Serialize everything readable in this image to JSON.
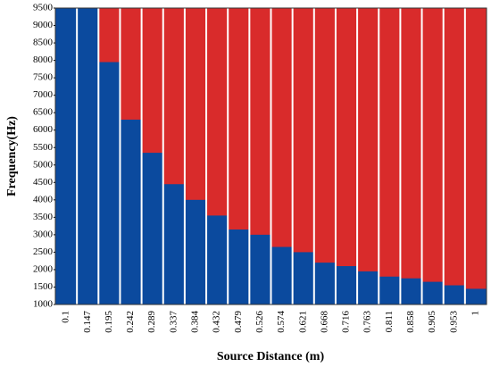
{
  "chart_data": {
    "type": "bar",
    "x_label": "Source Distance (m)",
    "y_label": "Frequency(Hz)",
    "categories": [
      "0.1",
      "0.147",
      "0.195",
      "0.242",
      "0.289",
      "0.337",
      "0.384",
      "0.432",
      "0.479",
      "0.526",
      "0.574",
      "0.621",
      "0.668",
      "0.716",
      "0.763",
      "0.811",
      "0.858",
      "0.905",
      "0.953",
      "1"
    ],
    "values": [
      9500,
      9500,
      7950,
      6300,
      5350,
      4450,
      4000,
      3550,
      3150,
      3000,
      2650,
      2500,
      2200,
      2100,
      1950,
      1800,
      1750,
      1650,
      1550,
      1450
    ],
    "color": "#0b4a9e",
    "background_color": "#d92b2b",
    "ylim": [
      1000,
      9500
    ],
    "yticks": [
      1000,
      1500,
      2000,
      2500,
      3000,
      3500,
      4000,
      4500,
      5000,
      5500,
      6000,
      6500,
      7000,
      7500,
      8000,
      8500,
      9000,
      9500
    ]
  }
}
